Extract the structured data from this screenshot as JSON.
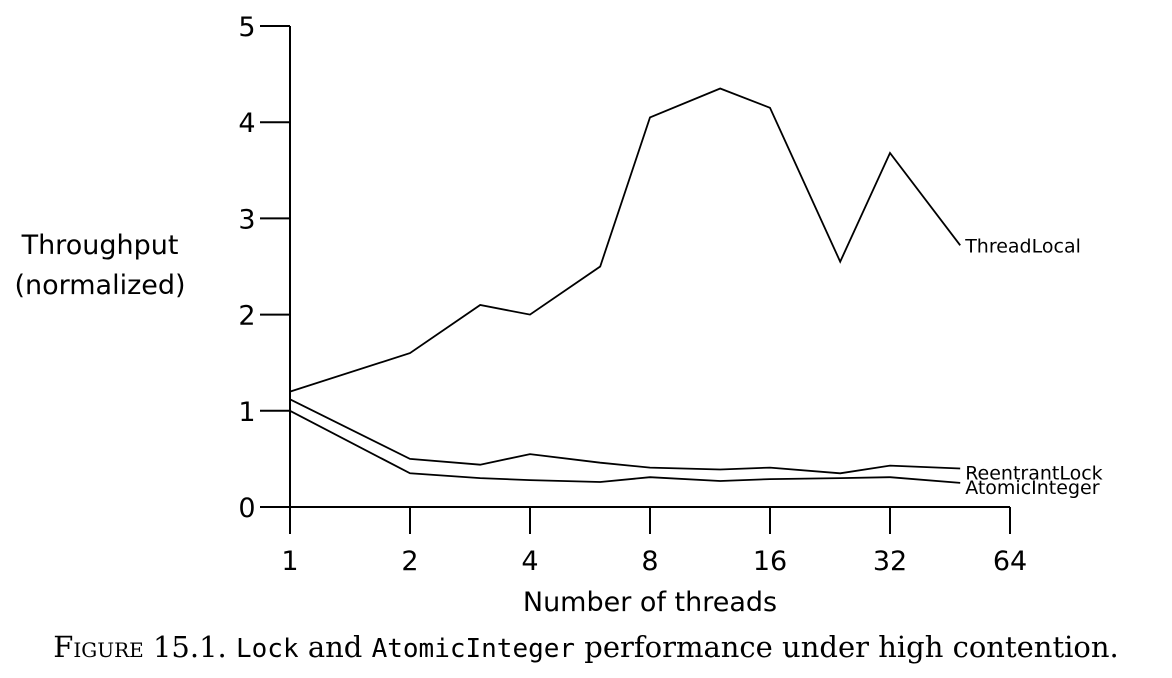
{
  "chart_data": {
    "type": "line",
    "ylabel_lines": [
      "Throughput",
      "(normalized)"
    ],
    "xlabel": "Number of threads",
    "x_ticks": [
      "1",
      "2",
      "4",
      "8",
      "16",
      "32",
      "64"
    ],
    "x_scale": "log2",
    "y_ticks": [
      "0",
      "1",
      "2",
      "3",
      "4",
      "5"
    ],
    "ylim": [
      0,
      5
    ],
    "xlim": [
      1,
      64
    ],
    "grid": false,
    "series": [
      {
        "name": "ThreadLocal",
        "x": [
          1,
          2,
          3,
          4,
          6,
          8,
          12,
          16,
          24,
          32,
          48
        ],
        "y": [
          1.2,
          1.6,
          2.1,
          2.0,
          2.5,
          4.05,
          4.35,
          4.15,
          2.55,
          3.68,
          2.72
        ]
      },
      {
        "name": "ReentrantLock",
        "x": [
          1,
          2,
          3,
          4,
          6,
          8,
          12,
          16,
          24,
          32,
          48
        ],
        "y": [
          1.12,
          0.5,
          0.44,
          0.55,
          0.46,
          0.41,
          0.39,
          0.41,
          0.35,
          0.43,
          0.4
        ]
      },
      {
        "name": "AtomicInteger",
        "x": [
          1,
          2,
          3,
          4,
          6,
          8,
          12,
          16,
          24,
          32,
          48
        ],
        "y": [
          1.0,
          0.35,
          0.3,
          0.28,
          0.26,
          0.31,
          0.27,
          0.29,
          0.3,
          0.31,
          0.25
        ]
      }
    ]
  },
  "caption": {
    "figure": "Figure",
    "number": "15.1.",
    "code1": "Lock",
    "and": "and",
    "code2": "AtomicInteger",
    "text": "performance under high contention."
  }
}
